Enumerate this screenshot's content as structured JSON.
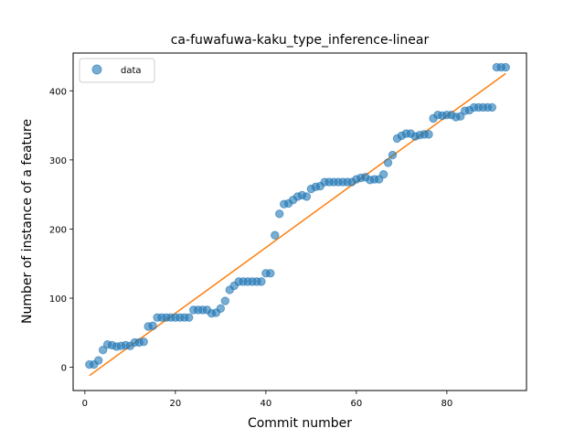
{
  "chart_data": {
    "type": "scatter",
    "title": "ca-fuwafuwa-kaku_type_inference-linear",
    "xlabel": "Commit number",
    "ylabel": "Number of instance of a feature",
    "xlim": [
      -2.6,
      97.6
    ],
    "ylim": [
      -33.6,
      454.6
    ],
    "xticks": [
      0,
      20,
      40,
      60,
      80
    ],
    "yticks": [
      0,
      100,
      200,
      300,
      400
    ],
    "grid": false,
    "legend": {
      "position": "upper-left",
      "entries": [
        "data"
      ]
    },
    "colors": {
      "data": "#1f77b4",
      "fit": "#ff7f0e"
    },
    "series": [
      {
        "name": "data",
        "kind": "scatter",
        "x": [
          1,
          2,
          3,
          4,
          5,
          6,
          7,
          8,
          9,
          10,
          11,
          12,
          13,
          14,
          15,
          16,
          17,
          18,
          19,
          20,
          21,
          22,
          23,
          24,
          25,
          26,
          27,
          28,
          29,
          30,
          31,
          32,
          33,
          34,
          35,
          36,
          37,
          38,
          39,
          40,
          41,
          42,
          43,
          44,
          45,
          46,
          47,
          48,
          49,
          50,
          51,
          52,
          53,
          54,
          55,
          56,
          57,
          58,
          59,
          60,
          61,
          62,
          63,
          64,
          65,
          66,
          67,
          68,
          69,
          70,
          71,
          72,
          73,
          74,
          75,
          76,
          77,
          78,
          79,
          80,
          81,
          82,
          83,
          84,
          85,
          86,
          87,
          88,
          89,
          90,
          91,
          92,
          93
        ],
        "y": [
          4,
          4,
          10,
          25,
          33,
          32,
          30,
          31,
          32,
          31,
          36,
          36,
          37,
          59,
          60,
          72,
          72,
          72,
          72,
          72,
          72,
          72,
          72,
          83,
          83,
          83,
          83,
          78,
          79,
          85,
          96,
          112,
          118,
          124,
          124,
          124,
          124,
          124,
          124,
          136,
          136,
          191,
          222,
          236,
          237,
          242,
          247,
          249,
          247,
          258,
          261,
          262,
          268,
          268,
          268,
          268,
          268,
          268,
          268,
          272,
          274,
          275,
          271,
          272,
          272,
          279,
          296,
          307,
          331,
          335,
          338,
          338,
          334,
          336,
          337,
          337,
          360,
          365,
          364,
          365,
          365,
          362,
          363,
          371,
          372,
          376,
          376,
          376,
          376,
          376,
          434,
          434,
          434
        ]
      },
      {
        "name": "",
        "kind": "line",
        "x": [
          1,
          93
        ],
        "y": [
          -12,
          425
        ]
      }
    ]
  }
}
